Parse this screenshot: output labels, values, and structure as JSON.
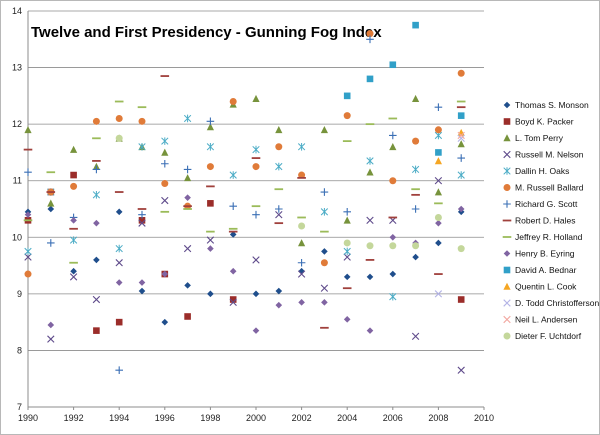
{
  "chart_data": {
    "type": "scatter",
    "title": "Twelve and First Presidency - Gunning Fog Index",
    "xlabel": "",
    "ylabel": "",
    "xlim": [
      1990,
      2010
    ],
    "ylim": [
      7,
      14
    ],
    "x_ticks": [
      1990,
      1992,
      1994,
      1996,
      1998,
      2000,
      2002,
      2004,
      2006,
      2008,
      2010
    ],
    "y_ticks": [
      7,
      8,
      9,
      10,
      11,
      12,
      13,
      14
    ],
    "grid": "horizontal",
    "legend_position": "right",
    "series": [
      {
        "name": "Thomas S. Monson",
        "color": "#1f4e8c",
        "marker": "diamond",
        "x": [
          1990,
          1991,
          1992,
          1993,
          1994,
          1995,
          1996,
          1997,
          1998,
          1999,
          2000,
          2001,
          2002,
          2003,
          2004,
          2005,
          2006,
          2007,
          2008,
          2009
        ],
        "y": [
          10.45,
          10.5,
          9.4,
          9.6,
          10.45,
          9.05,
          8.5,
          9.15,
          9.0,
          10.05,
          9.0,
          9.05,
          9.4,
          9.75,
          9.3,
          9.3,
          9.35,
          9.65,
          9.9,
          10.45
        ]
      },
      {
        "name": "Boyd K. Packer",
        "color": "#9b2d2a",
        "marker": "square",
        "x": [
          1990,
          1991,
          1992,
          1993,
          1994,
          1995,
          1996,
          1997,
          1998,
          1999,
          2009
        ],
        "y": [
          10.3,
          10.8,
          11.1,
          8.35,
          8.5,
          10.3,
          9.35,
          8.6,
          10.6,
          8.9,
          8.9
        ]
      },
      {
        "name": "L. Tom Perry",
        "color": "#77933c",
        "marker": "triangle",
        "x": [
          1990,
          1991,
          1992,
          1993,
          1994,
          1995,
          1996,
          1997,
          1998,
          1999,
          2000,
          2001,
          2002,
          2003,
          2004,
          2005,
          2006,
          2007,
          2008,
          2009
        ],
        "y": [
          11.9,
          10.6,
          11.55,
          11.25,
          11.75,
          11.6,
          11.5,
          11.05,
          11.95,
          12.35,
          12.45,
          11.9,
          9.9,
          11.9,
          10.3,
          11.15,
          11.6,
          12.45,
          10.8,
          11.65
        ]
      },
      {
        "name": "Russell M. Nelson",
        "color": "#5f4b8b",
        "marker": "x",
        "x": [
          1990,
          1991,
          1992,
          1993,
          1994,
          1995,
          1996,
          1997,
          1998,
          1999,
          2000,
          2001,
          2002,
          2003,
          2004,
          2005,
          2006,
          2007,
          2008,
          2009
        ],
        "y": [
          9.65,
          8.2,
          9.3,
          8.9,
          9.55,
          10.25,
          10.65,
          9.8,
          9.95,
          8.85,
          9.6,
          10.4,
          9.35,
          9.1,
          9.65,
          10.3,
          10.3,
          8.25,
          11.0,
          7.65
        ]
      },
      {
        "name": "Dallin H. Oaks",
        "color": "#4bacc6",
        "marker": "xx",
        "x": [
          1990,
          1991,
          1992,
          1993,
          1994,
          1995,
          1996,
          1997,
          1998,
          1999,
          2000,
          2001,
          2002,
          2003,
          2004,
          2005,
          2006,
          2007,
          2008,
          2009
        ],
        "y": [
          9.75,
          10.8,
          9.95,
          10.75,
          9.8,
          11.6,
          11.7,
          12.1,
          11.6,
          11.1,
          11.55,
          11.25,
          11.6,
          10.45,
          9.75,
          11.35,
          8.95,
          11.2,
          11.8,
          11.1
        ]
      },
      {
        "name": "M. Russell Ballard",
        "color": "#e07b39",
        "marker": "circle",
        "x": [
          1990,
          1991,
          1992,
          1993,
          1994,
          1995,
          1996,
          1997,
          1998,
          1999,
          2000,
          2001,
          2002,
          2003,
          2004,
          2005,
          2006,
          2007,
          2008,
          2009
        ],
        "y": [
          9.35,
          10.8,
          10.9,
          12.05,
          12.1,
          12.05,
          10.95,
          10.55,
          11.25,
          12.4,
          11.25,
          11.6,
          11.1,
          9.55,
          12.15,
          13.6,
          11.0,
          11.7,
          11.9,
          12.9
        ]
      },
      {
        "name": "Richard G. Scott",
        "color": "#3a6fb5",
        "marker": "plus",
        "x": [
          1990,
          1991,
          1992,
          1993,
          1994,
          1995,
          1996,
          1997,
          1998,
          1999,
          2000,
          2001,
          2002,
          2003,
          2004,
          2005,
          2006,
          2007,
          2008,
          2009
        ],
        "y": [
          11.15,
          9.9,
          10.35,
          11.2,
          7.65,
          10.4,
          11.3,
          11.2,
          12.05,
          10.55,
          10.4,
          10.5,
          9.55,
          10.8,
          10.45,
          13.5,
          11.8,
          10.5,
          12.3,
          11.4
        ]
      },
      {
        "name": "Robert D. Hales",
        "color": "#a0403c",
        "marker": "dash",
        "x": [
          1990,
          1991,
          1992,
          1993,
          1994,
          1995,
          1996,
          1997,
          1998,
          1999,
          2000,
          2001,
          2002,
          2003,
          2004,
          2005,
          2006,
          2007,
          2008,
          2009
        ],
        "y": [
          11.55,
          10.8,
          10.15,
          11.35,
          10.8,
          10.5,
          12.85,
          10.55,
          10.9,
          10.1,
          11.4,
          10.25,
          11.05,
          8.4,
          9.1,
          9.6,
          10.35,
          10.75,
          9.35,
          12.3
        ]
      },
      {
        "name": "Jeffrey R. Holland",
        "color": "#9bbb59",
        "marker": "dash",
        "x": [
          1990,
          1991,
          1992,
          1993,
          1994,
          1995,
          1996,
          1997,
          1998,
          1999,
          2000,
          2001,
          2002,
          2003,
          2004,
          2005,
          2006,
          2007,
          2008,
          2009
        ],
        "y": [
          10.3,
          11.15,
          9.55,
          11.75,
          12.4,
          12.3,
          10.45,
          10.5,
          10.1,
          10.15,
          10.55,
          10.85,
          10.35,
          10.1,
          11.7,
          12.0,
          12.1,
          10.85,
          10.6,
          12.4
        ]
      },
      {
        "name": "Henry B. Eyring",
        "color": "#8064a2",
        "marker": "diamond",
        "x": [
          1990,
          1991,
          1992,
          1993,
          1994,
          1995,
          1996,
          1997,
          1998,
          1999,
          2000,
          2001,
          2002,
          2003,
          2004,
          2005,
          2006,
          2007,
          2008,
          2009
        ],
        "y": [
          10.4,
          8.45,
          10.3,
          10.25,
          9.2,
          9.2,
          9.35,
          10.7,
          9.8,
          9.4,
          8.35,
          8.8,
          8.85,
          8.85,
          8.55,
          8.35,
          10.0,
          9.9,
          10.25,
          10.5
        ]
      },
      {
        "name": "David A. Bednar",
        "color": "#31a0c8",
        "marker": "square",
        "x": [
          2004,
          2005,
          2006,
          2007,
          2008,
          2009
        ],
        "y": [
          12.5,
          12.8,
          13.05,
          13.75,
          11.5,
          12.15
        ]
      },
      {
        "name": "Quentin L. Cook",
        "color": "#f5a623",
        "marker": "triangle",
        "x": [
          2008,
          2009
        ],
        "y": [
          11.35,
          11.85
        ]
      },
      {
        "name": "D. Todd Christofferson",
        "color": "#b3b3e6",
        "marker": "x",
        "x": [
          2008,
          2009
        ],
        "y": [
          9.0,
          11.75
        ]
      },
      {
        "name": "Neil L. Andersen",
        "color": "#f2a7a0",
        "marker": "x",
        "x": [
          2009
        ],
        "y": [
          11.8
        ]
      },
      {
        "name": "Dieter F. Uchtdorf",
        "color": "#c4d79b",
        "marker": "circle",
        "x": [
          1994,
          2002,
          2004,
          2005,
          2006,
          2007,
          2008,
          2009
        ],
        "y": [
          11.75,
          10.2,
          9.9,
          9.85,
          9.85,
          9.85,
          10.35,
          9.8
        ]
      }
    ]
  }
}
